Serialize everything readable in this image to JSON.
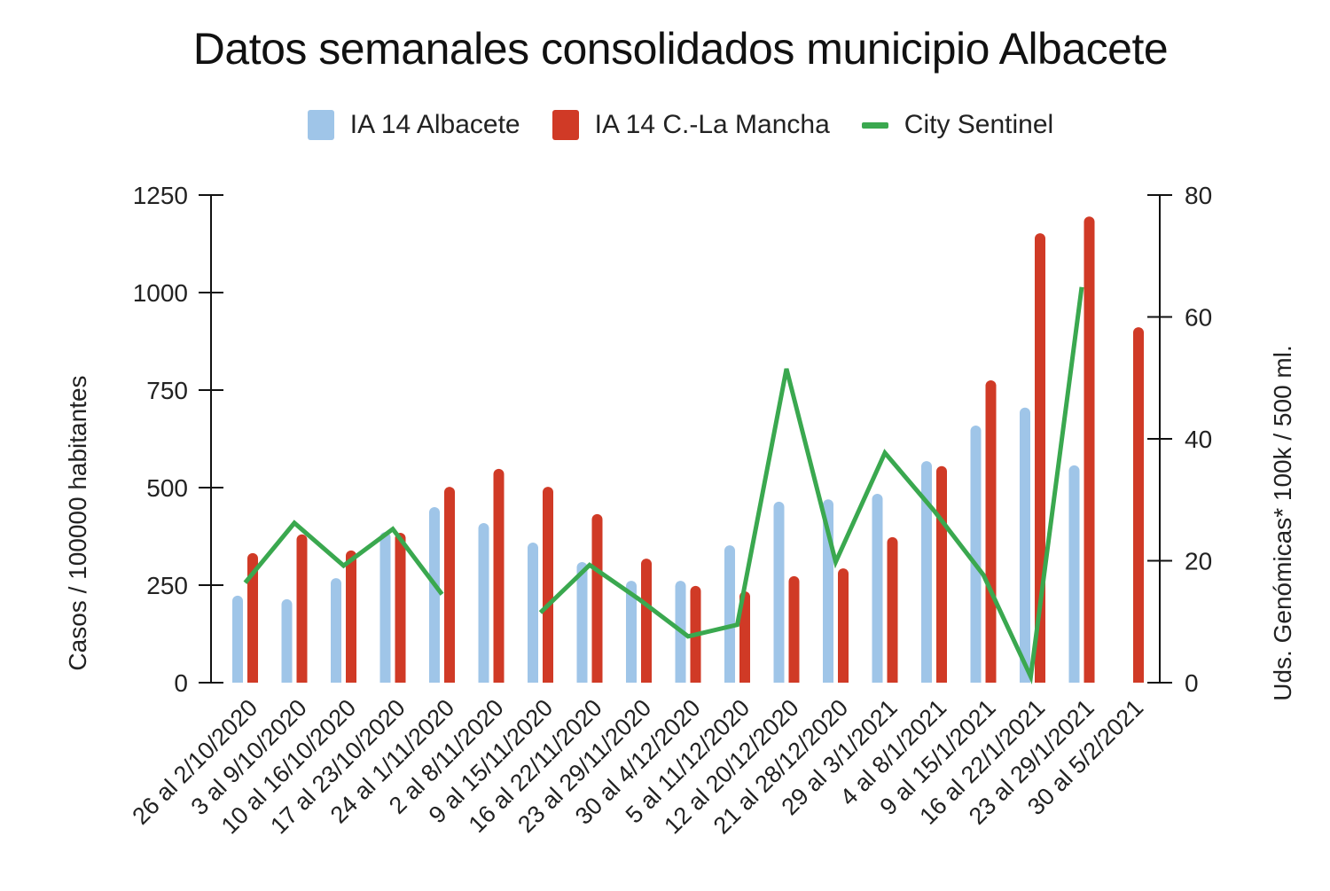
{
  "title": "Datos semanales consolidados municipio Albacete",
  "legend": [
    {
      "label": "IA 14 Albacete",
      "type": "bar",
      "color": "#9fc5e8"
    },
    {
      "label": "IA 14 C.-La Mancha",
      "type": "bar",
      "color": "#d03a26"
    },
    {
      "label": "City Sentinel",
      "type": "line",
      "color": "#3aa84f"
    }
  ],
  "axes": {
    "left_label": "Casos / 100000 habitantes",
    "right_label": "Uds. Genómicas* 100k / 500 ml.",
    "left_ticks": [
      "0",
      "250",
      "500",
      "750",
      "1000",
      "1250"
    ],
    "right_ticks": [
      "0",
      "20",
      "40",
      "60",
      "80"
    ]
  },
  "chart_data": {
    "type": "bar",
    "title": "Datos semanales consolidados municipio Albacete",
    "xlabel": "",
    "ylabel": "Casos / 100000 habitantes",
    "y2label": "Uds. Genómicas* 100k / 500 ml.",
    "ylim": [
      0,
      1250
    ],
    "y2lim": [
      0,
      80
    ],
    "grid": false,
    "legend_position": "top",
    "categories": [
      "26 al 2/10/2020",
      "3 al 9/10/2020",
      "10 al 16/10/2020",
      "17 al 23/10/2020",
      "24 al 1/11/2020",
      "2 al 8/11/2020",
      "9 al 15/11/2020",
      "16 al 22/11/2020",
      "23 al 29/11/2020",
      "30 al 4/12/2020",
      "5 al 11/12/2020",
      "12 al 20/12/2020",
      "21 al 28/12/2020",
      "29 al 3/1/2021",
      "4 al 8/1/2021",
      "9 al 15/1/2021",
      "16 al 22/1/2021",
      "23 al 29/1/2021",
      "30 al 5/2/2021"
    ],
    "series": [
      {
        "name": "IA 14 Albacete",
        "type": "bar",
        "axis": "left",
        "color": "#9fc5e8",
        "values": [
          223,
          214,
          268,
          386,
          450,
          409,
          359,
          309,
          261,
          261,
          352,
          464,
          470,
          484,
          568,
          659,
          705,
          557,
          null
        ]
      },
      {
        "name": "IA 14 C.-La Mancha",
        "type": "bar",
        "axis": "left",
        "color": "#d03a26",
        "values": [
          332,
          380,
          339,
          384,
          502,
          548,
          502,
          432,
          318,
          248,
          234,
          273,
          293,
          373,
          555,
          775,
          1152,
          1195,
          911
        ]
      },
      {
        "name": "City Sentinel",
        "type": "line",
        "axis": "right",
        "color": "#3aa84f",
        "values": [
          16.4,
          26.2,
          19.2,
          25.2,
          14.5,
          null,
          11.5,
          19.3,
          13.7,
          7.6,
          9.5,
          51.5,
          19.8,
          37.7,
          28.2,
          17.7,
          1.0,
          64.9,
          null
        ]
      }
    ]
  }
}
